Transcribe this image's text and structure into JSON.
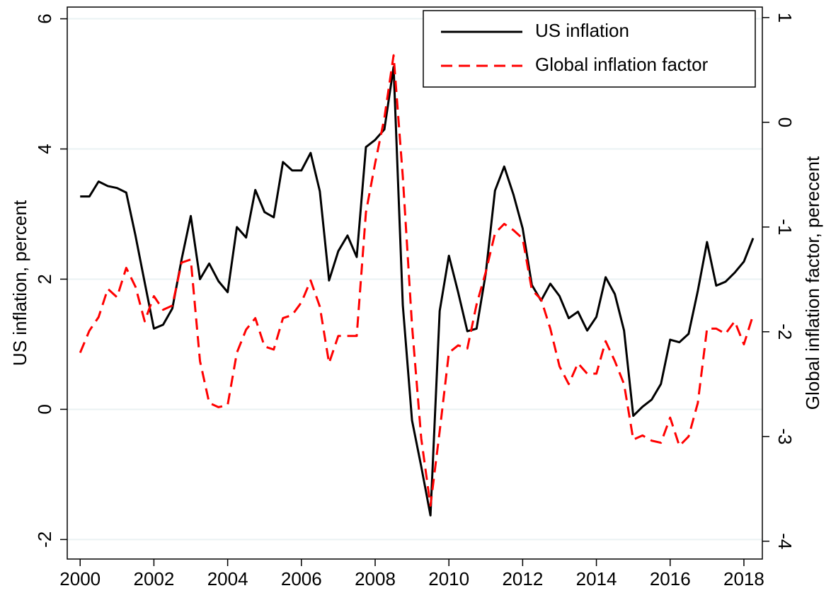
{
  "chart_data": {
    "type": "line",
    "y_label": "US inflation, percent",
    "y2_label": "Global inflation factor, perecent",
    "x": [
      2000,
      2000.25,
      2000.5,
      2000.75,
      2001,
      2001.25,
      2001.5,
      2001.75,
      2002,
      2002.25,
      2002.5,
      2002.75,
      2003,
      2003.25,
      2003.5,
      2003.75,
      2004,
      2004.25,
      2004.5,
      2004.75,
      2005,
      2005.25,
      2005.5,
      2005.75,
      2006,
      2006.25,
      2006.5,
      2006.75,
      2007,
      2007.25,
      2007.5,
      2007.75,
      2008,
      2008.25,
      2008.5,
      2008.75,
      2009,
      2009.25,
      2009.5,
      2009.75,
      2010,
      2010.25,
      2010.5,
      2010.75,
      2011,
      2011.25,
      2011.5,
      2011.75,
      2012,
      2012.25,
      2012.5,
      2012.75,
      2013,
      2013.25,
      2013.5,
      2013.75,
      2014,
      2014.25,
      2014.5,
      2014.75,
      2015,
      2015.25,
      2015.5,
      2015.75,
      2016,
      2016.25,
      2016.5,
      2016.75,
      2017,
      2017.25,
      2017.5,
      2017.75,
      2018,
      2018.25
    ],
    "series": [
      {
        "name": "US inflation",
        "color": "#000000",
        "dash": "solid",
        "axis": "y",
        "values": [
          3.27,
          3.27,
          3.5,
          3.43,
          3.4,
          3.33,
          2.67,
          1.95,
          1.24,
          1.3,
          1.55,
          2.3,
          2.97,
          2.0,
          2.24,
          1.97,
          1.8,
          2.8,
          2.64,
          3.37,
          3.03,
          2.95,
          3.8,
          3.67,
          3.67,
          3.94,
          3.35,
          1.98,
          2.43,
          2.67,
          2.34,
          4.03,
          4.14,
          4.3,
          5.26,
          1.6,
          -0.17,
          -0.88,
          -1.63,
          1.51,
          2.36,
          1.8,
          1.2,
          1.24,
          2.09,
          3.36,
          3.73,
          3.3,
          2.78,
          1.91,
          1.67,
          1.93,
          1.74,
          1.4,
          1.5,
          1.21,
          1.42,
          2.03,
          1.77,
          1.21,
          -0.1,
          0.04,
          0.15,
          0.39,
          1.07,
          1.03,
          1.16,
          1.82,
          2.57,
          1.9,
          1.96,
          2.1,
          2.27,
          2.63
        ]
      },
      {
        "name": "Global inflation factor",
        "color": "#ff0000",
        "dash": "dashed",
        "axis": "y2",
        "values": [
          -2.2,
          -1.99,
          -1.86,
          -1.59,
          -1.67,
          -1.39,
          -1.57,
          -1.9,
          -1.66,
          -1.79,
          -1.75,
          -1.34,
          -1.31,
          -2.28,
          -2.68,
          -2.72,
          -2.7,
          -2.2,
          -1.98,
          -1.87,
          -2.14,
          -2.17,
          -1.87,
          -1.84,
          -1.72,
          -1.51,
          -1.76,
          -2.3,
          -2.04,
          -2.04,
          -2.04,
          -0.86,
          -0.39,
          0.04,
          0.64,
          -0.52,
          -1.94,
          -3.02,
          -3.66,
          -2.95,
          -2.2,
          -2.13,
          -2.16,
          -1.74,
          -1.43,
          -1.06,
          -0.97,
          -1.03,
          -1.11,
          -1.6,
          -1.69,
          -1.97,
          -2.33,
          -2.5,
          -2.3,
          -2.4,
          -2.4,
          -2.09,
          -2.28,
          -2.5,
          -3.03,
          -2.99,
          -3.04,
          -3.06,
          -2.82,
          -3.09,
          -3.0,
          -2.68,
          -1.97,
          -1.97,
          -2.02,
          -1.9,
          -2.12,
          -1.84
        ]
      }
    ],
    "xlim": [
      1999.65,
      2018.5
    ],
    "xticks": [
      2000,
      2002,
      2004,
      2006,
      2008,
      2010,
      2012,
      2014,
      2016,
      2018
    ],
    "ylim": [
      -2.3,
      6.18
    ],
    "yticks": [
      -2,
      0,
      2,
      4,
      6
    ],
    "y2lim": [
      -4.17,
      1.1
    ],
    "y2ticks": [
      -4,
      -3,
      -2,
      -1,
      0,
      1
    ],
    "grid": true,
    "legend": "top-right"
  }
}
